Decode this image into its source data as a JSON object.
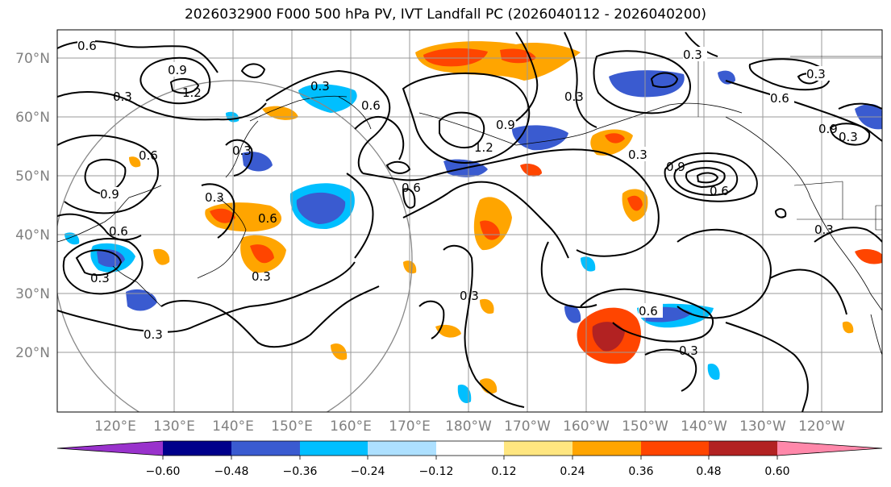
{
  "title": "2026032900 F000 500 hPa PV, IVT Landfall PC (2026040112 - 2026040200)",
  "lat_labels": [
    "70°N",
    "60°N",
    "50°N",
    "40°N",
    "30°N",
    "20°N"
  ],
  "lon_labels": [
    "120°E",
    "130°E",
    "140°E",
    "150°E",
    "160°E",
    "170°E",
    "180°W",
    "170°W",
    "160°W",
    "150°W",
    "140°W",
    "130°W",
    "120°W"
  ],
  "colorbar": {
    "colors": [
      "#9932CC",
      "#00008B",
      "#3A5BD0",
      "#00BFFF",
      "#ADE0FF",
      "#FFFFFF",
      "#FFE680",
      "#FFA500",
      "#FF4500",
      "#B22222",
      "#FF88AA"
    ],
    "tick_labels": [
      "−0.60",
      "−0.48",
      "−0.36",
      "−0.24",
      "−0.12",
      "0.12",
      "0.24",
      "0.36",
      "0.48",
      "0.60"
    ]
  },
  "contour_labels": [
    "0.6",
    "0.9",
    "1.2",
    "0.3",
    "0.3",
    "0.6",
    "0.9",
    "0.3",
    "0.6",
    "0.3",
    "0.6",
    "0.6",
    "0.3",
    "0.3",
    "0.3",
    "0.3",
    "0.3",
    "0.9",
    "1.2",
    "0.9",
    "0.6",
    "0.3",
    "0.6",
    "0.3",
    "0.3",
    "0.3",
    "0.6",
    "0.9",
    "0.3",
    "0.3",
    "0.6"
  ],
  "colors": {
    "grid": "#9a9a9a",
    "contour": "#000000",
    "circle": "#888888"
  }
}
